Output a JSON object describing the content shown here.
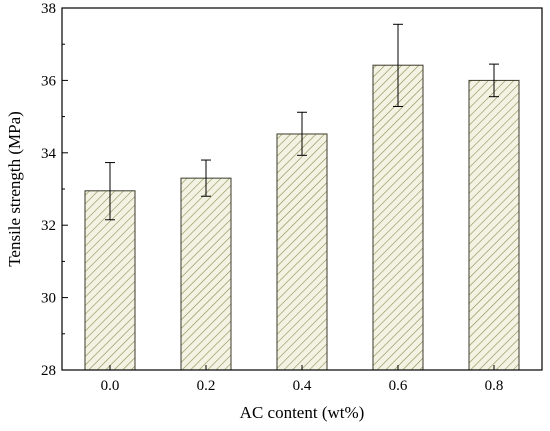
{
  "chart_data": {
    "type": "bar",
    "title": "",
    "xlabel": "AC content (wt%)",
    "ylabel": "Tensile strength (MPa)",
    "categories": [
      "0.0",
      "0.2",
      "0.4",
      "0.6",
      "0.8"
    ],
    "values": [
      32.95,
      33.3,
      34.52,
      36.42,
      36.0
    ],
    "error_low": [
      32.15,
      32.8,
      33.93,
      35.28,
      35.55
    ],
    "error_high": [
      33.73,
      33.8,
      35.12,
      37.55,
      36.45
    ],
    "ylim": [
      28,
      38
    ],
    "yticks": [
      "28",
      "30",
      "32",
      "34",
      "36",
      "38"
    ],
    "bar_fill": "#f3f3e3",
    "hatch_color": "#8c8c55",
    "grid": false,
    "legend": "none"
  }
}
